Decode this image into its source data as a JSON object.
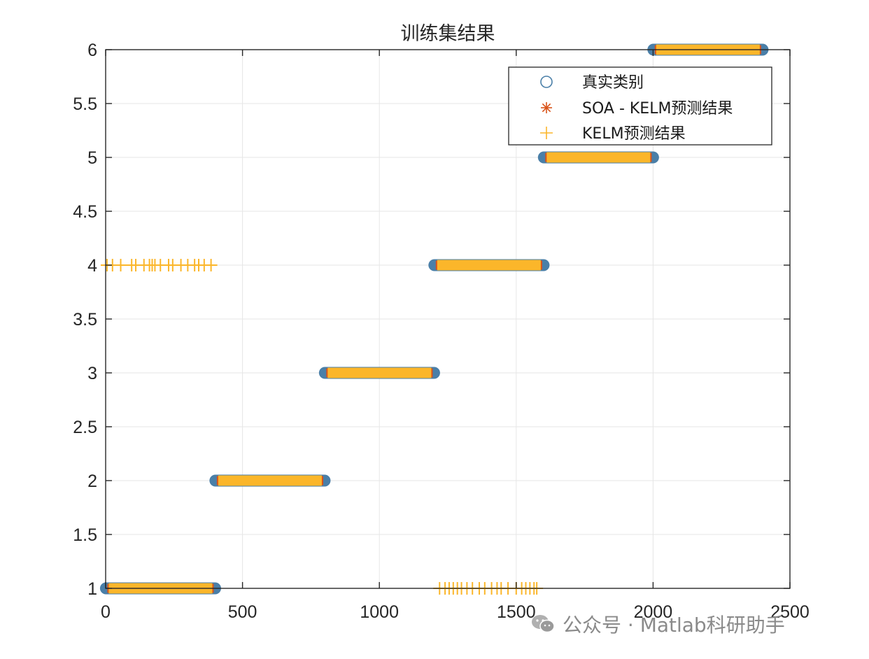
{
  "chart_data": {
    "type": "scatter",
    "title": "训练集结果",
    "xlabel": "",
    "ylabel": "",
    "xlim": [
      0,
      2500
    ],
    "ylim": [
      1,
      6
    ],
    "x_ticks": [
      0,
      500,
      1000,
      1500,
      2000,
      2500
    ],
    "y_ticks": [
      1,
      1.5,
      2,
      2.5,
      3,
      3.5,
      4,
      4.5,
      5,
      5.5,
      6
    ],
    "grid": true,
    "legend_position": "top-right",
    "series": [
      {
        "name": "真实类别",
        "marker": "circle",
        "color": "#4a7fa8",
        "segments": [
          {
            "x_start": 1,
            "x_end": 400,
            "y": 1
          },
          {
            "x_start": 401,
            "x_end": 800,
            "y": 2
          },
          {
            "x_start": 801,
            "x_end": 1200,
            "y": 3
          },
          {
            "x_start": 1201,
            "x_end": 1600,
            "y": 4
          },
          {
            "x_start": 1601,
            "x_end": 2000,
            "y": 5
          },
          {
            "x_start": 2001,
            "x_end": 2400,
            "y": 6
          }
        ]
      },
      {
        "name": "SOA - KELM预测结果",
        "marker": "asterisk",
        "color": "#d95319",
        "segments": [
          {
            "x_start": 1,
            "x_end": 400,
            "y": 1
          },
          {
            "x_start": 401,
            "x_end": 800,
            "y": 2
          },
          {
            "x_start": 801,
            "x_end": 1200,
            "y": 3
          },
          {
            "x_start": 1201,
            "x_end": 1600,
            "y": 4
          },
          {
            "x_start": 1601,
            "x_end": 2000,
            "y": 5
          },
          {
            "x_start": 2001,
            "x_end": 2400,
            "y": 6
          }
        ]
      },
      {
        "name": "KELM预测结果",
        "marker": "plus",
        "color": "#fbb62a",
        "segments": [
          {
            "x_start": 1,
            "x_end": 400,
            "y": 1
          },
          {
            "x_start": 401,
            "x_end": 800,
            "y": 2
          },
          {
            "x_start": 801,
            "x_end": 1200,
            "y": 3
          },
          {
            "x_start": 1201,
            "x_end": 1600,
            "y": 4
          },
          {
            "x_start": 1601,
            "x_end": 2000,
            "y": 5
          },
          {
            "x_start": 2001,
            "x_end": 2400,
            "y": 6
          }
        ],
        "outliers": [
          {
            "x": 5,
            "y": 4
          },
          {
            "x": 25,
            "y": 4
          },
          {
            "x": 55,
            "y": 4
          },
          {
            "x": 95,
            "y": 4
          },
          {
            "x": 110,
            "y": 4
          },
          {
            "x": 140,
            "y": 4
          },
          {
            "x": 160,
            "y": 4
          },
          {
            "x": 170,
            "y": 4
          },
          {
            "x": 180,
            "y": 4
          },
          {
            "x": 200,
            "y": 4
          },
          {
            "x": 230,
            "y": 4
          },
          {
            "x": 245,
            "y": 4
          },
          {
            "x": 275,
            "y": 4
          },
          {
            "x": 300,
            "y": 4
          },
          {
            "x": 325,
            "y": 4
          },
          {
            "x": 340,
            "y": 4
          },
          {
            "x": 360,
            "y": 4
          },
          {
            "x": 385,
            "y": 4
          },
          {
            "x": 1220,
            "y": 1
          },
          {
            "x": 1240,
            "y": 1
          },
          {
            "x": 1255,
            "y": 1
          },
          {
            "x": 1270,
            "y": 1
          },
          {
            "x": 1285,
            "y": 1
          },
          {
            "x": 1300,
            "y": 1
          },
          {
            "x": 1320,
            "y": 1
          },
          {
            "x": 1340,
            "y": 1
          },
          {
            "x": 1365,
            "y": 1
          },
          {
            "x": 1385,
            "y": 1
          },
          {
            "x": 1410,
            "y": 1
          },
          {
            "x": 1430,
            "y": 1
          },
          {
            "x": 1445,
            "y": 1
          },
          {
            "x": 1470,
            "y": 1
          },
          {
            "x": 1500,
            "y": 1
          },
          {
            "x": 1520,
            "y": 1
          },
          {
            "x": 1535,
            "y": 1
          },
          {
            "x": 1550,
            "y": 1
          },
          {
            "x": 1565,
            "y": 1
          },
          {
            "x": 1575,
            "y": 1
          }
        ]
      }
    ]
  },
  "watermark": {
    "text": "公众号 · Matlab科研助手",
    "icon": "wechat-icon"
  }
}
